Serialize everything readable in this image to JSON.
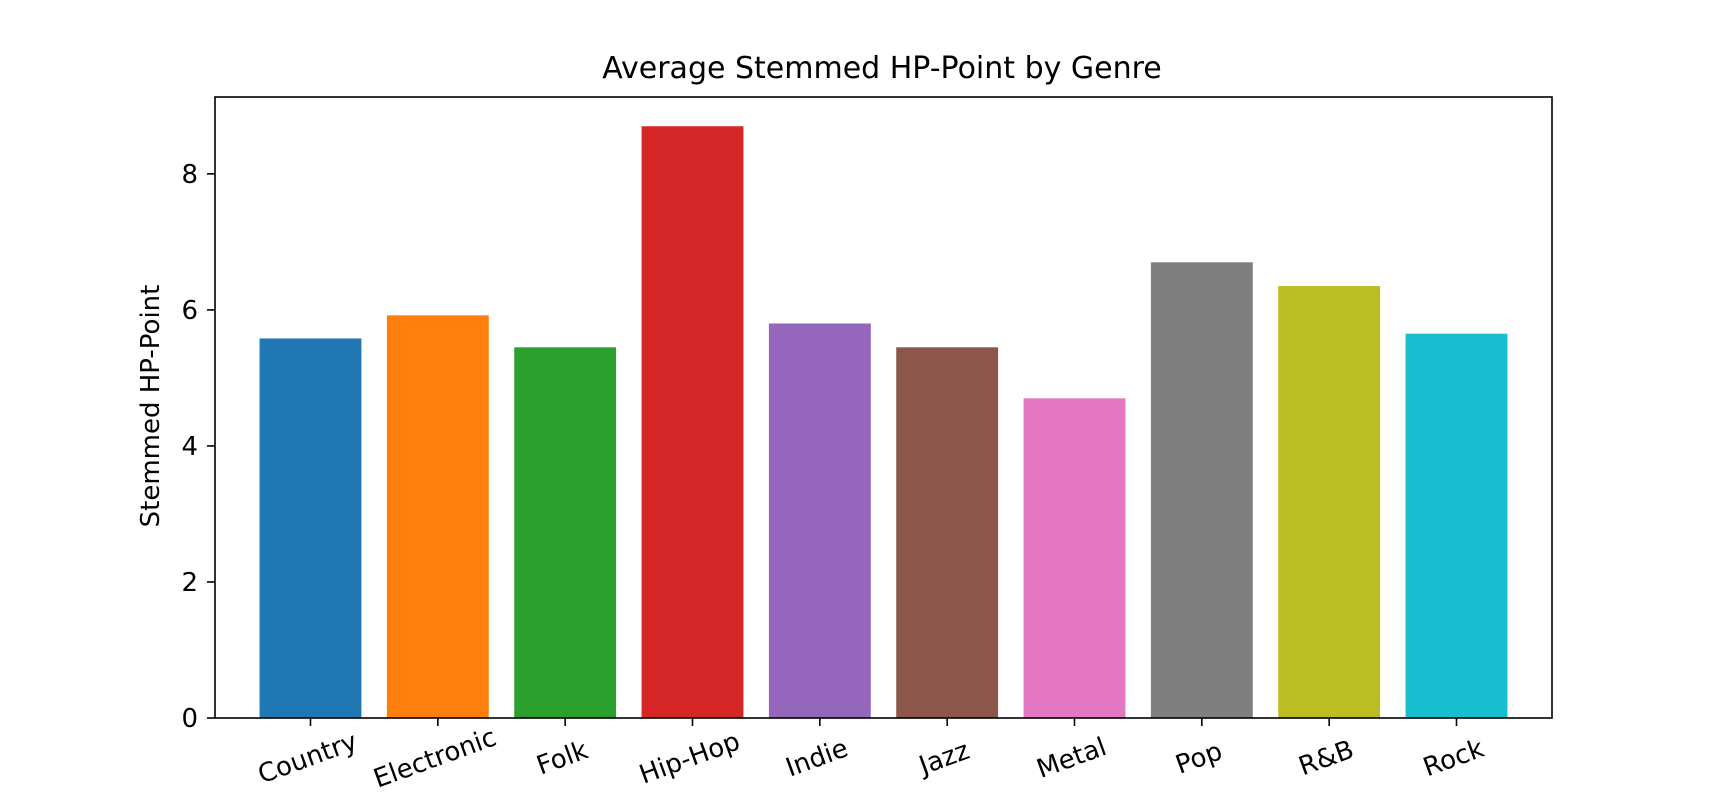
{
  "chart_data": {
    "type": "bar",
    "title": "Average Stemmed HP-Point by Genre",
    "xlabel": "",
    "ylabel": "Stemmed HP-Point",
    "categories": [
      "Country",
      "Electronic",
      "Folk",
      "Hip-Hop",
      "Indie",
      "Jazz",
      "Metal",
      "Pop",
      "R&B",
      "Rock"
    ],
    "values": [
      5.58,
      5.92,
      5.45,
      8.7,
      5.8,
      5.45,
      4.7,
      6.7,
      6.35,
      5.65
    ],
    "colors": [
      "#1f77b4",
      "#ff7f0e",
      "#2ca02c",
      "#d62728",
      "#9467bd",
      "#8c564b",
      "#e377c2",
      "#7f7f7f",
      "#bcbd22",
      "#17becf"
    ],
    "ylim": [
      0,
      9.13
    ],
    "yticks": [
      "0",
      "2",
      "4",
      "6",
      "8"
    ],
    "grid": false,
    "legend": false,
    "xtick_rotation": "angled"
  }
}
